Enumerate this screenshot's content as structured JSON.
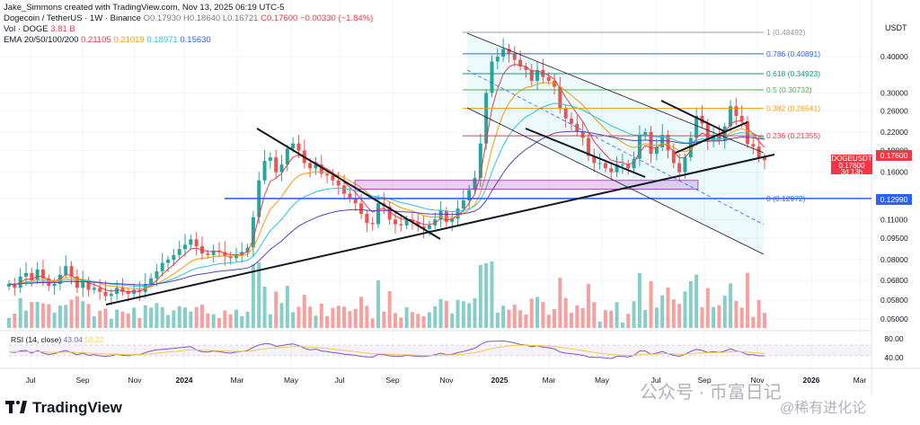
{
  "header": {
    "creator": "Jake_Simmons created with TradingView.com, Nov 13, 2025 06:19 UTC-5",
    "symbol": "Dogecoin / TetherUS · 1W · Binance",
    "ohlc_o": "O0.17930",
    "ohlc_h": "H0.18640",
    "ohlc_l": "L0.16721",
    "ohlc_c": "C0.17600",
    "ohlc_chg": "−0.00330 (−1.84%)",
    "vol_label": "Vol · DOGE",
    "vol_value": "3.81 B",
    "ema_label": "EMA 20/50/100/200",
    "ema_values": [
      "0.21105",
      "0.21019",
      "0.18971",
      "0.15630"
    ]
  },
  "logo": "TradingView",
  "watermark": "公众号 · 币富日记",
  "watermark2": "@稀有进化论",
  "price_tag": {
    "symbol": "DOGEUSDT",
    "price": "0.17600",
    "countdown": "3d 13h"
  },
  "colors": {
    "up": "#26a69a",
    "down": "#ef5350",
    "ema20": "#f23645",
    "ema50": "#ff9800",
    "ema100": "#26c6da",
    "ema200": "#5b3eb5",
    "support": "#2962ff",
    "rsi": "#7e57c2"
  },
  "chart_data": {
    "type": "candlestick",
    "title": "Dogecoin / TetherUS · 1W · Binance",
    "y_unit": "USDT",
    "y_scale": "log",
    "y_ticks": [
      "0.40000",
      "0.30000",
      "0.26000",
      "0.22000",
      "0.19000",
      "0.16000",
      "0.12990",
      "0.11000",
      "0.09500",
      "0.08000",
      "0.06800",
      "0.05800",
      "0.05000"
    ],
    "x_ticks": [
      "Jul",
      "Sep",
      "Nov",
      "2024",
      "Mar",
      "May",
      "Jul",
      "Sep",
      "Nov",
      "2025",
      "Mar",
      "May",
      "Jul",
      "Sep",
      "Nov",
      "2026",
      "Mar"
    ],
    "fib_levels": [
      {
        "label": "1 (0.48492)",
        "value": 0.48492,
        "color": "#9598a1"
      },
      {
        "label": "0.786 (0.40891)",
        "value": 0.40891,
        "color": "#2962ff"
      },
      {
        "label": "0.618 (0.34923)",
        "value": 0.34923,
        "color": "#089981"
      },
      {
        "label": "0.5 (0.30732)",
        "value": 0.30732,
        "color": "#4caf50"
      },
      {
        "label": "0.382 (0.26541)",
        "value": 0.26541,
        "color": "#ff9800"
      },
      {
        "label": "0.236 (0.21355)",
        "value": 0.21355,
        "color": "#f23645"
      },
      {
        "label": "0 (0.12972)",
        "value": 0.12972,
        "color": "#2962ff"
      }
    ],
    "support_level": {
      "label": "0.12990",
      "value": 0.1299
    },
    "last_red_label": "0.17600",
    "candles_close": [
      0.066,
      0.064,
      0.07,
      0.072,
      0.068,
      0.074,
      0.069,
      0.065,
      0.066,
      0.071,
      0.076,
      0.07,
      0.064,
      0.068,
      0.063,
      0.064,
      0.062,
      0.06,
      0.061,
      0.064,
      0.062,
      0.061,
      0.063,
      0.062,
      0.066,
      0.069,
      0.073,
      0.078,
      0.08,
      0.083,
      0.087,
      0.09,
      0.094,
      0.089,
      0.084,
      0.083,
      0.086,
      0.085,
      0.082,
      0.081,
      0.083,
      0.085,
      0.088,
      0.112,
      0.15,
      0.175,
      0.18,
      0.16,
      0.17,
      0.193,
      0.201,
      0.19,
      0.172,
      0.165,
      0.17,
      0.158,
      0.156,
      0.15,
      0.144,
      0.135,
      0.13,
      0.125,
      0.115,
      0.107,
      0.106,
      0.125,
      0.122,
      0.11,
      0.106,
      0.105,
      0.11,
      0.108,
      0.104,
      0.102,
      0.105,
      0.11,
      0.118,
      0.108,
      0.111,
      0.12,
      0.128,
      0.139,
      0.153,
      0.201,
      0.3,
      0.385,
      0.4,
      0.425,
      0.41,
      0.39,
      0.37,
      0.36,
      0.33,
      0.36,
      0.34,
      0.33,
      0.315,
      0.265,
      0.245,
      0.235,
      0.22,
      0.21,
      0.182,
      0.172,
      0.172,
      0.165,
      0.16,
      0.17,
      0.17,
      0.165,
      0.178,
      0.215,
      0.22,
      0.185,
      0.195,
      0.215,
      0.19,
      0.172,
      0.16,
      0.18,
      0.21,
      0.25,
      0.235,
      0.205,
      0.215,
      0.205,
      0.23,
      0.27,
      0.25,
      0.24,
      0.2,
      0.196,
      0.18,
      0.176
    ],
    "series": [
      {
        "name": "EMA 20",
        "value": 0.21105
      },
      {
        "name": "EMA 50",
        "value": 0.21019
      },
      {
        "name": "EMA 100",
        "value": 0.18971
      },
      {
        "name": "EMA 200",
        "value": 0.1563
      }
    ],
    "volume_label": "Vol · DOGE 3.81 B",
    "rsi": {
      "label": "RSI (14, close)",
      "value": "43.04",
      "ma": "50.22",
      "ticks": [
        "80.00",
        "40.00"
      ],
      "values": [
        55,
        52,
        58,
        60,
        50,
        60,
        50,
        45,
        48,
        55,
        60,
        52,
        44,
        50,
        42,
        44,
        40,
        38,
        40,
        46,
        42,
        40,
        45,
        44,
        52,
        58,
        62,
        64,
        66,
        68,
        70,
        72,
        74,
        62,
        55,
        54,
        58,
        56,
        52,
        50,
        54,
        56,
        60,
        72,
        80,
        85,
        84,
        75,
        78,
        82,
        84,
        78,
        68,
        62,
        65,
        58,
        56,
        52,
        50,
        46,
        44,
        42,
        38,
        36,
        35,
        46,
        44,
        40,
        38,
        38,
        42,
        40,
        38,
        37,
        40,
        44,
        50,
        44,
        46,
        52,
        56,
        62,
        68,
        82,
        92,
        94,
        94,
        95,
        92,
        88,
        82,
        80,
        74,
        78,
        72,
        70,
        66,
        54,
        50,
        48,
        45,
        42,
        36,
        34,
        34,
        32,
        30,
        38,
        38,
        36,
        42,
        58,
        58,
        46,
        50,
        56,
        48,
        42,
        38,
        46,
        56,
        64,
        60,
        52,
        56,
        52,
        58,
        66,
        58,
        54,
        44,
        44,
        40,
        40
      ]
    }
  }
}
